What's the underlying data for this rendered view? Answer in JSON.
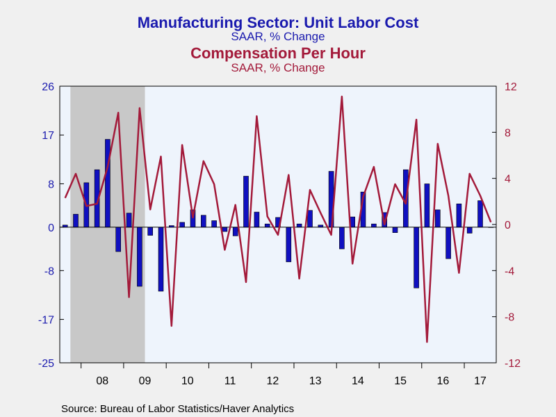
{
  "chart_data": {
    "type": "bar+line",
    "titles": [
      {
        "text": "Manufacturing Sector: Unit Labor Cost",
        "color": "#1a1aae"
      },
      {
        "text": "SAAR, % Change",
        "color": "#1a1aae"
      },
      {
        "text": "Compensation Per Hour",
        "color": "#a31a3a"
      },
      {
        "text": "SAAR, % Change",
        "color": "#a31a3a"
      }
    ],
    "x_labels": [
      "08",
      "09",
      "10",
      "11",
      "12",
      "13",
      "14",
      "15",
      "16",
      "17"
    ],
    "left_axis": {
      "ticks": [
        "26",
        "17",
        "8",
        "0",
        "-8",
        "-17",
        "-25"
      ],
      "ylim": [
        -25,
        26
      ],
      "color": "#1a1aae"
    },
    "right_axis": {
      "ticks": [
        "12",
        "8",
        "4",
        "0",
        "-4",
        "-8",
        "-12"
      ],
      "ylim": [
        -12,
        12
      ],
      "color": "#a31a3a"
    },
    "recession": {
      "start": "2007Q4",
      "end": "2009Q2",
      "color": "#c8c8c8"
    },
    "plot_bg": "#eef4fc",
    "quarters": [
      "2007Q3",
      "2007Q4",
      "2008Q1",
      "2008Q2",
      "2008Q3",
      "2008Q4",
      "2009Q1",
      "2009Q2",
      "2009Q3",
      "2009Q4",
      "2010Q1",
      "2010Q2",
      "2010Q3",
      "2010Q4",
      "2011Q1",
      "2011Q2",
      "2011Q3",
      "2011Q4",
      "2012Q1",
      "2012Q2",
      "2012Q3",
      "2012Q4",
      "2013Q1",
      "2013Q2",
      "2013Q3",
      "2013Q4",
      "2014Q1",
      "2014Q2",
      "2014Q3",
      "2014Q4",
      "2015Q1",
      "2015Q2",
      "2015Q3",
      "2015Q4",
      "2016Q1",
      "2016Q2",
      "2016Q3",
      "2016Q4",
      "2017Q1",
      "2017Q2",
      "2017Q3"
    ],
    "series": [
      {
        "name": "Unit Labor Cost",
        "kind": "bar",
        "axis": "left",
        "color": "#1010c0",
        "values": [
          0.4,
          2.4,
          8.2,
          10.6,
          16.2,
          -4.5,
          2.6,
          -10.9,
          -1.5,
          -11.8,
          0.3,
          0.9,
          3.2,
          2.2,
          1.2,
          -0.8,
          -1.6,
          9.4,
          2.8,
          0.6,
          1.8,
          -6.4,
          0.6,
          3.1,
          0.4,
          10.3,
          -4.0,
          1.9,
          6.5,
          0.6,
          2.7,
          -1.0,
          10.6,
          -11.2,
          8.0,
          3.2,
          -5.8,
          4.3,
          -1.1,
          4.9,
          0.0
        ]
      },
      {
        "name": "Compensation Per Hour",
        "kind": "line",
        "axis": "right",
        "color": "#a31a3a",
        "values": [
          2.3,
          4.4,
          1.6,
          1.8,
          5.0,
          9.7,
          -6.3,
          10.1,
          1.3,
          5.9,
          -8.8,
          6.9,
          0.6,
          5.5,
          3.5,
          -2.2,
          1.7,
          -5.0,
          9.4,
          0.7,
          -0.9,
          4.3,
          -4.7,
          3.0,
          1.0,
          -0.9,
          11.1,
          -3.4,
          2.4,
          5.0,
          0.0,
          3.5,
          1.8,
          9.1,
          -10.2,
          7.0,
          2.5,
          -4.2,
          4.4,
          2.5,
          0.2
        ]
      }
    ]
  },
  "source": "Source:  Bureau of Labor Statistics/Haver Analytics"
}
